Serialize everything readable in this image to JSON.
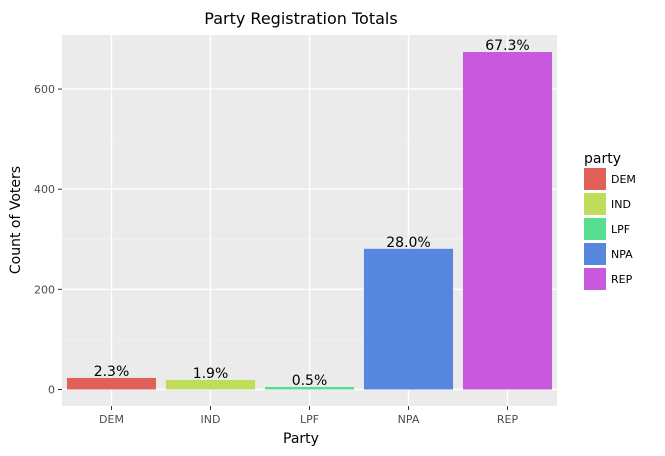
{
  "chart_data": {
    "type": "bar",
    "title": "Party Registration Totals",
    "xlabel": "Party",
    "ylabel": "Count of Voters",
    "categories": [
      "DEM",
      "IND",
      "LPF",
      "NPA",
      "REP"
    ],
    "values": [
      23,
      19,
      5,
      281,
      674
    ],
    "data_labels": [
      "2.3%",
      "1.9%",
      "0.5%",
      "28.0%",
      "67.3%"
    ],
    "colors": [
      "#E06159",
      "#BFDC5A",
      "#57DE8F",
      "#5786DE",
      "#C858DE"
    ],
    "ylim": [
      -33,
      708
    ],
    "yticks": [
      0,
      200,
      400,
      600
    ],
    "grid": true,
    "legend": {
      "title": "party",
      "placement": "right",
      "entries": [
        "DEM",
        "IND",
        "LPF",
        "NPA",
        "REP"
      ]
    }
  }
}
